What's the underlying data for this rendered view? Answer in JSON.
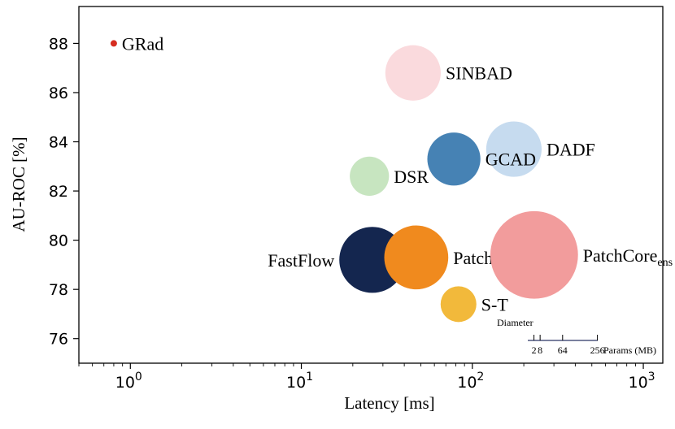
{
  "chart_data": {
    "type": "scatter",
    "xlabel": "Latency [ms]",
    "ylabel": "AU-ROC [%]",
    "xscale": "log",
    "xlim": [
      0.5,
      1300
    ],
    "ylim": [
      75,
      89.5
    ],
    "x_ticks": [
      1,
      10,
      100,
      1000
    ],
    "x_tick_labels": [
      {
        "base": "10",
        "exp": "0"
      },
      {
        "base": "10",
        "exp": "1"
      },
      {
        "base": "10",
        "exp": "2"
      },
      {
        "base": "10",
        "exp": "3"
      }
    ],
    "y_ticks": [
      76,
      78,
      80,
      82,
      84,
      86,
      88
    ],
    "y_tick_labels": [
      "76",
      "78",
      "80",
      "82",
      "84",
      "86",
      "88"
    ],
    "grid": false,
    "points": [
      {
        "name": "GRad",
        "sub": "",
        "x": 0.8,
        "y": 88.0,
        "params_mb": 0.8,
        "color": "#d62d20",
        "label_side": "right"
      },
      {
        "name": "SINBAD",
        "sub": "",
        "x": 45,
        "y": 86.8,
        "params_mb": 60,
        "color": "#fadadd",
        "label_side": "right"
      },
      {
        "name": "DADF",
        "sub": "",
        "x": 175,
        "y": 83.7,
        "params_mb": 60,
        "color": "#c6dbef",
        "label_side": "right"
      },
      {
        "name": "GCAD",
        "sub": "",
        "x": 78,
        "y": 83.3,
        "params_mb": 55,
        "color": "#4682b4",
        "label_side": "right"
      },
      {
        "name": "DSR",
        "sub": "",
        "x": 25,
        "y": 82.6,
        "params_mb": 30,
        "color": "#c7e5c0",
        "label_side": "right"
      },
      {
        "name": "FastFlow",
        "sub": "",
        "x": 26,
        "y": 79.2,
        "params_mb": 85,
        "color": "#14264f",
        "label_side": "left"
      },
      {
        "name": "PatchCore",
        "sub": "",
        "x": 47,
        "y": 79.3,
        "params_mb": 80,
        "color": "#f08a1e",
        "label_side": "right"
      },
      {
        "name": "PatchCore",
        "sub": "ens",
        "x": 230,
        "y": 79.4,
        "params_mb": 150,
        "color": "#f29c9c",
        "label_side": "right"
      },
      {
        "name": "S-T",
        "sub": "",
        "x": 83,
        "y": 77.4,
        "params_mb": 25,
        "color": "#f2b93b",
        "label_side": "right"
      }
    ],
    "size_legend": {
      "title": "Diameter",
      "unit_label": "Params (MB)",
      "ticks": [
        {
          "label": "2",
          "value": 2
        },
        {
          "label": "8",
          "value": 8
        },
        {
          "label": "64",
          "value": 64
        },
        {
          "label": "256",
          "value": 256
        }
      ]
    }
  }
}
